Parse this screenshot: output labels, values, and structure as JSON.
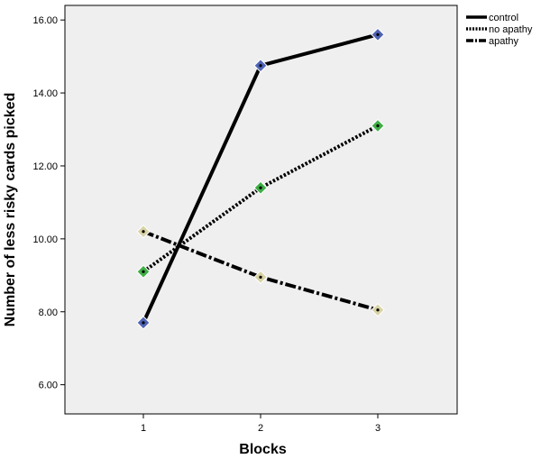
{
  "chart_data": {
    "type": "line",
    "xlabel": "Blocks",
    "ylabel": "Number of less risky cards picked",
    "categories": [
      "1",
      "2",
      "3"
    ],
    "y_ticks": [
      "6.00",
      "8.00",
      "10.00",
      "12.00",
      "14.00",
      "16.00"
    ],
    "ylim": [
      5.2,
      16.4
    ],
    "grid": false,
    "legend_position": "top-right",
    "series": [
      {
        "name": "control",
        "values": [
          7.7,
          14.75,
          15.6
        ],
        "line_style": "solid",
        "marker_color": "#4f63b5"
      },
      {
        "name": "no apathy",
        "values": [
          9.1,
          11.4,
          13.1
        ],
        "line_style": "dotted",
        "marker_color": "#3fae45"
      },
      {
        "name": "apathy",
        "values": [
          10.2,
          8.95,
          8.05
        ],
        "line_style": "dash-dot",
        "marker_color": "#d8d3a6"
      }
    ]
  },
  "colors": {
    "plot_background": "#efefef",
    "line": "#000000"
  }
}
